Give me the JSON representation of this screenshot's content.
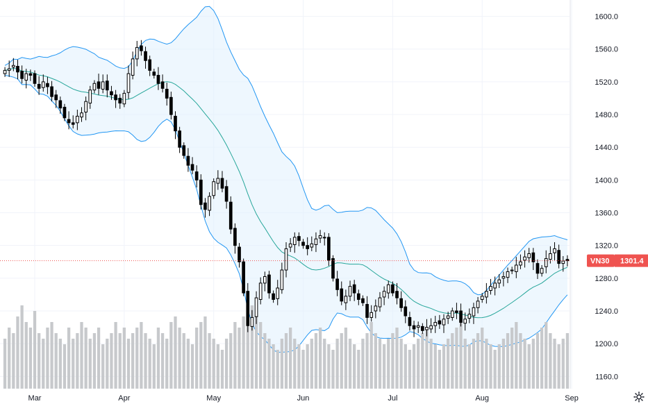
{
  "chart_data": {
    "type": "candlestick",
    "symbol": "VN30",
    "last_price": "1301.4",
    "indicators": [
      "Bollinger Bands (20, 2)",
      "Volume"
    ],
    "y_axis": {
      "min": 1145,
      "max": 1620,
      "ticks": [
        "1600.0",
        "1560.0",
        "1520.0",
        "1480.0",
        "1440.0",
        "1400.0",
        "1360.0",
        "1320.0",
        "1280.0",
        "1240.0",
        "1200.0",
        "1160.0"
      ]
    },
    "x_axis": {
      "labels": [
        "Mar",
        "Apr",
        "May",
        "Jun",
        "Jul",
        "Aug",
        "Sep"
      ],
      "label_index": [
        7,
        28,
        49,
        70,
        91,
        112,
        133
      ]
    },
    "colors": {
      "up": "#000000",
      "down": "#000000",
      "band": "#2196f3",
      "band_fill": "#e3f2fd",
      "basis": "#26a69a",
      "volume": "#c7c9cc",
      "price_line": "#ef5350",
      "price_tag": "#ef5350",
      "grid": "#f0f3fa"
    },
    "series": {
      "close": [
        1534,
        1536,
        1540,
        1532,
        1524,
        1530,
        1528,
        1518,
        1512,
        1520,
        1514,
        1502,
        1498,
        1488,
        1476,
        1470,
        1468,
        1478,
        1482,
        1496,
        1510,
        1518,
        1512,
        1520,
        1510,
        1504,
        1498,
        1494,
        1506,
        1530,
        1548,
        1562,
        1558,
        1546,
        1534,
        1528,
        1518,
        1512,
        1500,
        1480,
        1460,
        1440,
        1430,
        1418,
        1412,
        1400,
        1370,
        1364,
        1380,
        1398,
        1402,
        1390,
        1374,
        1340,
        1320,
        1300,
        1262,
        1222,
        1232,
        1256,
        1274,
        1282,
        1262,
        1254,
        1268,
        1290,
        1316,
        1322,
        1330,
        1326,
        1320,
        1316,
        1322,
        1328,
        1332,
        1330,
        1302,
        1280,
        1266,
        1252,
        1258,
        1270,
        1262,
        1254,
        1250,
        1232,
        1238,
        1246,
        1256,
        1264,
        1272,
        1262,
        1256,
        1244,
        1234,
        1222,
        1218,
        1222,
        1216,
        1220,
        1222,
        1226,
        1224,
        1230,
        1234,
        1240,
        1238,
        1226,
        1230,
        1236,
        1244,
        1252,
        1258,
        1264,
        1270,
        1274,
        1278,
        1282,
        1288,
        1290,
        1296,
        1300,
        1306,
        1310,
        1300,
        1286,
        1292,
        1304,
        1310,
        1316,
        1298,
        1301,
        1301.4
      ],
      "volume": [
        18,
        22,
        20,
        26,
        30,
        24,
        22,
        28,
        20,
        18,
        22,
        24,
        20,
        18,
        16,
        22,
        18,
        20,
        24,
        22,
        18,
        20,
        22,
        16,
        18,
        20,
        24,
        20,
        22,
        18,
        20,
        22,
        24,
        20,
        18,
        16,
        22,
        20,
        18,
        24,
        26,
        22,
        20,
        18,
        16,
        22,
        24,
        26,
        20,
        18,
        16,
        14,
        18,
        20,
        24,
        22,
        26,
        28,
        30,
        26,
        24,
        20,
        18,
        16,
        14,
        18,
        20,
        22,
        18,
        16,
        14,
        16,
        18,
        20,
        22,
        18,
        16,
        14,
        18,
        20,
        22,
        18,
        16,
        14,
        18,
        20,
        24,
        20,
        18,
        16,
        18,
        20,
        22,
        18,
        16,
        14,
        16,
        18,
        20,
        22,
        18,
        16,
        14,
        16,
        18,
        20,
        22,
        24,
        18,
        16,
        18,
        20,
        22,
        18,
        16,
        14,
        16,
        18,
        20,
        22,
        24,
        20,
        18,
        16,
        18,
        20,
        22,
        24,
        20,
        18,
        16,
        18,
        20
      ]
    }
  },
  "ui": {
    "settings_icon": "gear-icon"
  }
}
